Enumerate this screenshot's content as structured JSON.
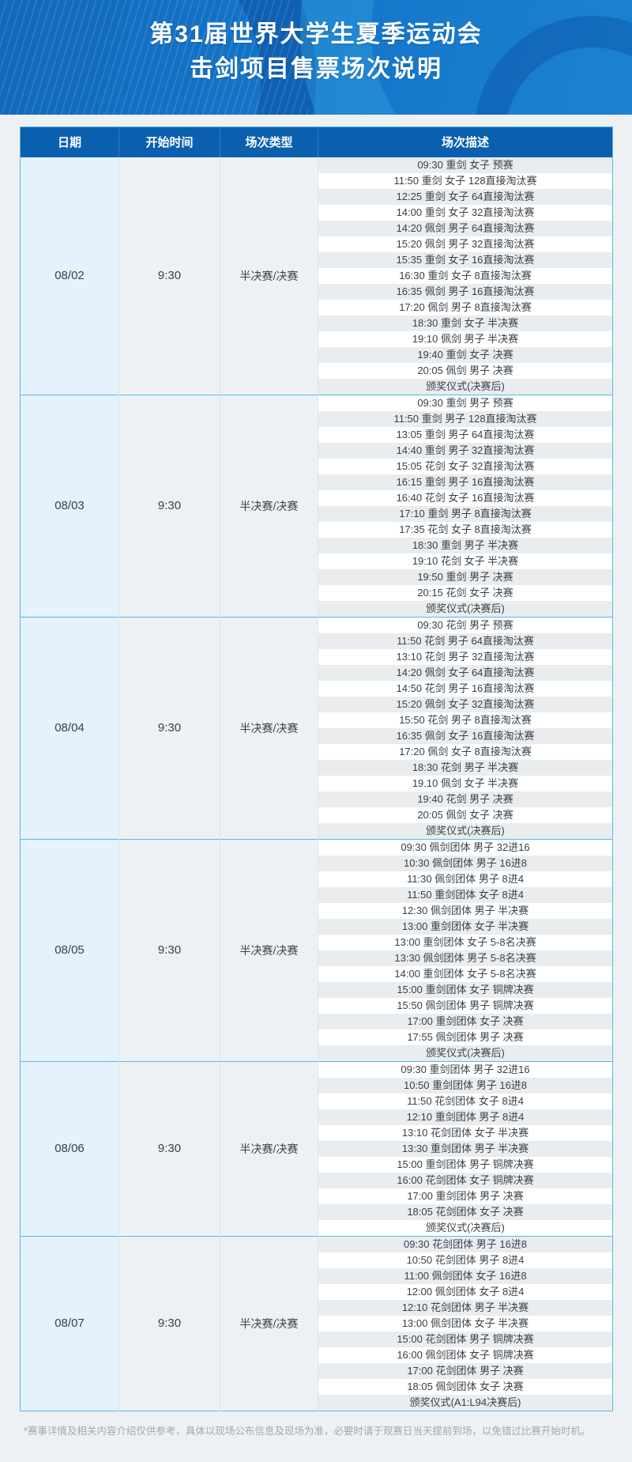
{
  "header": {
    "title_line1": "第31届世界大学生夏季运动会",
    "title_line2": "击剑项目售票场次说明"
  },
  "table": {
    "columns": [
      "日期",
      "开始时间",
      "场次类型",
      "场次描述"
    ],
    "groups": [
      {
        "date": "08/02",
        "start_time": "9:30",
        "type": "半决赛/决赛",
        "sessions": [
          "09:30 重剑 女子 预赛",
          "11:50 重剑 女子 128直接淘汰赛",
          "12:25 重剑 女子 64直接淘汰赛",
          "14:00 重剑 女子 32直接淘汰赛",
          "14:20 佩剑 男子 64直接淘汰赛",
          "15:20 佩剑 男子 32直接淘汰赛",
          "15:35 重剑 女子 16直接淘汰赛",
          "16:30 重剑 女子 8直接淘汰赛",
          "16:35 佩剑 男子 16直接淘汰赛",
          "17:20 佩剑 男子 8直接淘汰赛",
          "18:30 重剑 女子 半决赛",
          "19:10 佩剑 男子 半决赛",
          "19:40 重剑 女子 决赛",
          "20:05 佩剑 男子 决赛",
          "颁奖仪式(决赛后)"
        ]
      },
      {
        "date": "08/03",
        "start_time": "9:30",
        "type": "半决赛/决赛",
        "sessions": [
          "09:30 重剑 男子 预赛",
          "11:50 重剑 男子 128直接淘汰赛",
          "13:05 重剑 男子 64直接淘汰赛",
          "14:40 重剑 男子 32直接淘汰赛",
          "15:05 花剑 女子 32直接淘汰赛",
          "16:15 重剑 男子 16直接淘汰赛",
          "16:40 花剑 女子 16直接淘汰赛",
          "17:10 重剑 男子 8直接淘汰赛",
          "17:35 花剑 女子 8直接淘汰赛",
          "18:30 重剑 男子 半决赛",
          "19:10 花剑 女子 半决赛",
          "19:50 重剑 男子 决赛",
          "20:15 花剑 女子 决赛",
          "颁奖仪式(决赛后)"
        ]
      },
      {
        "date": "08/04",
        "start_time": "9:30",
        "type": "半决赛/决赛",
        "sessions": [
          "09:30 花剑 男子 预赛",
          "11:50 花剑 男子 64直接淘汰赛",
          "13:10 花剑 男子 32直接淘汰赛",
          "14:20 佩剑 女子 64直接淘汰赛",
          "14:50 花剑 男子 16直接淘汰赛",
          "15:20 佩剑 女子 32直接淘汰赛",
          "15:50 花剑 男子 8直接淘汰赛",
          "16:35 佩剑 女子 16直接淘汰赛",
          "17:20 佩剑 女子 8直接淘汰赛",
          "18:30 花剑 男子 半决赛",
          "19.10 佩剑 女子 半决赛",
          "19:40 花剑 男子 决赛",
          "20:05 佩剑 女子 决赛",
          "颁奖仪式(决赛后)"
        ]
      },
      {
        "date": "08/05",
        "start_time": "9:30",
        "type": "半决赛/决赛",
        "sessions": [
          "09:30 佩剑团体 男子 32进16",
          "10:30 佩剑团体 男子 16进8",
          "11:30 佩剑团体 男子 8进4",
          "11:50 重剑团体 女子  8进4",
          "12:30 佩剑团体 男子 半决赛",
          "13:00 重剑团体 女子 半决赛",
          "13:00 重剑团体 女子 5-8名决赛",
          "13:30 佩剑团体 男子 5-8名决赛",
          "14:00 重剑团体 女子 5-8名决赛",
          "15:00 重剑团体 女子 铜牌决赛",
          "15:50 佩剑团体 男子 铜牌决赛",
          "17:00 重剑团体 女子 决赛",
          "17:55 佩剑团体 男子 决赛",
          "颁奖仪式(决赛后)"
        ]
      },
      {
        "date": "08/06",
        "start_time": "9:30",
        "type": "半决赛/决赛",
        "sessions": [
          "09:30  重剑团体 男子 32进16",
          "10:50  重剑团体 男子 16进8",
          "11:50  花剑团体 女子 8进4",
          "12:10  重剑团体 男子 8进4",
          "13:10  花剑团体 女子 半决赛",
          "13:30  重剑团体 男子 半决赛",
          "15:00  重剑团体 男子 铜牌决赛",
          "16:00  花剑团体 女子 铜牌决赛",
          "17:00  重剑团体 男子 决赛",
          "18:05  花剑团体 女子 决赛",
          "颁奖仪式(决赛后)"
        ]
      },
      {
        "date": "08/07",
        "start_time": "9:30",
        "type": "半决赛/决赛",
        "sessions": [
          "09:30  花剑团体 男子 16进8",
          "10:50  花剑团体 男子 8进4",
          "11:00  佩剑团体 女子 16进8",
          "12:00  佩剑团体 女子 8进4",
          "12:10  花剑团体 男子 半决赛",
          "13:00  佩剑团体 女子 半决赛",
          "15:00  花剑团体 男子 铜牌决赛",
          "16:00  佩剑团体 女子 铜牌决赛",
          "17:00  花剑团体 男子 决赛",
          "18:05  佩剑团体 女子 决赛",
          "颁奖仪式(A1:L94决赛后)"
        ]
      }
    ]
  },
  "footnote": "*赛事详情及相关内容介绍仅供参考，具体以现场公布信息及现场为准，必要时请于观赛日当天提前到场，以免错过比赛开始时机。",
  "colors": {
    "banner_blue": "#1474c8",
    "header_row_blue": "#0a60ae",
    "accent_light_blue": "#5bb7e5",
    "date_column_tint": "#e3f2fb",
    "neutral_column": "#eef1f4",
    "stripe_grey": "#e9edf0",
    "stripe_white": "#ffffff",
    "body_text": "#3b4045",
    "footnote_text": "#a2a8ad"
  }
}
